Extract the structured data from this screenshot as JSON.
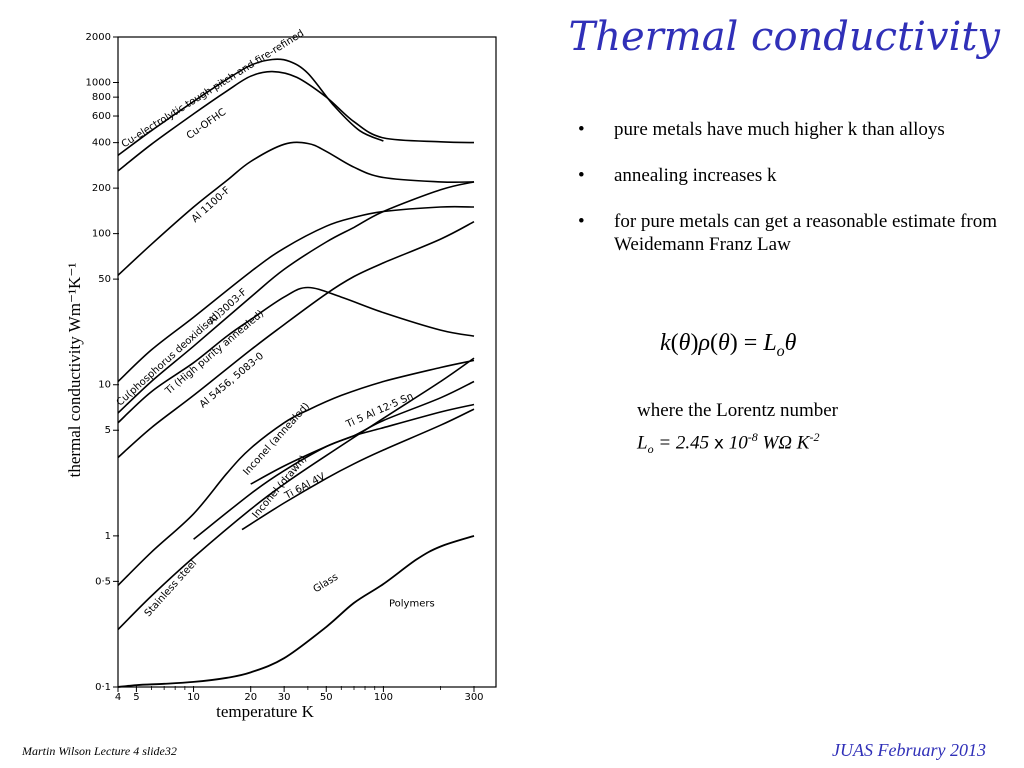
{
  "slide": {
    "title": "Thermal conductivity",
    "bullets": [
      "pure metals have much higher k than alloys",
      "annealing increases k",
      "for pure metals can get a reasonable estimate from Weidemann Franz Law"
    ],
    "bullet_symbol": "•",
    "formula": {
      "k": "k",
      "theta1": "θ",
      "rho": "ρ",
      "theta2": "θ",
      "L": "L",
      "o": "o",
      "theta3": "θ"
    },
    "lorentz": {
      "line1": "where the Lorentz number",
      "L": "L",
      "o": "o",
      "eq": " = 2.45 ",
      "times": "x",
      "ten": " 10",
      "exp": "-8",
      "units": " WΩ K",
      "units_exp": "-2"
    },
    "footer_left": "Martin Wilson Lecture 4 slide32",
    "footer_right": "JUAS February 2013",
    "accent_color": "#3030b8"
  },
  "chart_data": {
    "type": "line",
    "xlabel": "temperature K",
    "ylabel": "thermal conductivity Wm⁻¹K⁻¹",
    "x_scale": "log",
    "y_scale": "log",
    "xlim": [
      4,
      300
    ],
    "ylim": [
      0.1,
      2000
    ],
    "x_ticks": [
      4,
      5,
      10,
      20,
      30,
      50,
      100,
      300
    ],
    "x_tick_labels": [
      "4",
      "5",
      "10",
      "20",
      "30",
      "50",
      "100",
      "300"
    ],
    "x_minor_ticks": [
      6,
      7,
      8,
      9,
      40,
      60,
      70,
      80,
      90,
      200
    ],
    "y_ticks": [
      0.1,
      0.5,
      1,
      5,
      10,
      50,
      100,
      200,
      400,
      600,
      800,
      1000,
      2000
    ],
    "y_tick_labels": [
      "0·1",
      "0·5",
      "1",
      "5",
      "10",
      "50",
      "100",
      "200",
      "400",
      "600",
      "800",
      "1000",
      "2000"
    ],
    "series": [
      {
        "name": "Cu-electrolytic tough pitch and fire-refined",
        "x": [
          4,
          6,
          10,
          15,
          20,
          26,
          32,
          40,
          55,
          75,
          100
        ],
        "y": [
          330,
          480,
          750,
          1050,
          1300,
          1420,
          1380,
          1150,
          700,
          480,
          410
        ]
      },
      {
        "name": "Cu-OFHC",
        "x": [
          4,
          6,
          10,
          15,
          20,
          26,
          35,
          50,
          70,
          100,
          200,
          300
        ],
        "y": [
          260,
          390,
          620,
          880,
          1100,
          1180,
          1080,
          800,
          550,
          430,
          405,
          400
        ]
      },
      {
        "name": "Al 1100-F",
        "x": [
          4,
          6,
          10,
          15,
          20,
          30,
          40,
          50,
          70,
          100,
          200,
          300
        ],
        "y": [
          53,
          85,
          150,
          225,
          300,
          390,
          395,
          350,
          275,
          235,
          220,
          220
        ]
      },
      {
        "name": "Al 3003-F",
        "x": [
          4,
          6,
          10,
          20,
          30,
          50,
          70,
          100,
          200,
          300
        ],
        "y": [
          10.5,
          17,
          28,
          56,
          80,
          112,
          128,
          140,
          150,
          150
        ]
      },
      {
        "name": "Cu (phosphorus deoxidised)",
        "x": [
          4,
          6,
          10,
          20,
          30,
          50,
          70,
          100,
          200,
          300
        ],
        "y": [
          6.5,
          10.5,
          18,
          38,
          58,
          88,
          110,
          140,
          195,
          220
        ]
      },
      {
        "name": "Ti (High purity annealed)",
        "x": [
          4,
          6,
          10,
          15,
          20,
          30,
          40,
          60,
          100,
          200,
          300
        ],
        "y": [
          5.6,
          9,
          14,
          21,
          27,
          38,
          44,
          38,
          30,
          23,
          21
        ]
      },
      {
        "name": "Al 5456, 5083-0",
        "x": [
          4,
          6,
          10,
          20,
          30,
          50,
          70,
          100,
          200,
          300
        ],
        "y": [
          3.3,
          5.2,
          8.5,
          17,
          25,
          40,
          52,
          64,
          92,
          120
        ]
      },
      {
        "name": "Inconel (annealed)",
        "x": [
          4,
          6,
          10,
          15,
          20,
          30,
          40,
          60,
          100,
          200,
          300
        ],
        "y": [
          0.47,
          0.78,
          1.4,
          2.6,
          3.8,
          5.6,
          6.8,
          8.5,
          10.5,
          13,
          14.5
        ]
      },
      {
        "name": "Inconel (drawn)",
        "x": [
          10,
          20,
          30,
          50,
          70,
          100,
          200,
          300
        ],
        "y": [
          0.95,
          1.9,
          2.7,
          3.9,
          4.6,
          5.8,
          8.2,
          10.5
        ]
      },
      {
        "name": "Ti 5 Al 12.5 Sn",
        "x": [
          20,
          30,
          50,
          70,
          100,
          200,
          300
        ],
        "y": [
          2.2,
          2.9,
          3.9,
          4.6,
          5.2,
          6.6,
          7.4
        ]
      },
      {
        "name": "Ti 6 Al 4V",
        "x": [
          18,
          30,
          50,
          70,
          100,
          200,
          300
        ],
        "y": [
          1.1,
          1.65,
          2.4,
          3.0,
          3.7,
          5.4,
          6.9
        ]
      },
      {
        "name": "Stainless steel",
        "x": [
          4,
          6,
          10,
          20,
          30,
          50,
          100,
          200,
          300
        ],
        "y": [
          0.24,
          0.4,
          0.72,
          1.5,
          2.2,
          3.4,
          6.0,
          10.5,
          15
        ]
      },
      {
        "name": "Glass",
        "x": [
          4,
          5,
          7,
          10,
          15,
          20,
          30,
          50,
          70,
          100,
          150,
          200,
          300
        ],
        "y": [
          0.1,
          0.103,
          0.105,
          0.108,
          0.115,
          0.125,
          0.155,
          0.25,
          0.36,
          0.48,
          0.7,
          0.85,
          1.0
        ]
      }
    ],
    "labels": [
      {
        "text": "Cu-electrolytic tough pitch and fire-refined",
        "x": 4.3,
        "y": 370,
        "angle": -32
      },
      {
        "text": "Cu-OFHC",
        "x": 9.5,
        "y": 420,
        "angle": -35
      },
      {
        "text": "Al 1100-F",
        "x": 10.2,
        "y": 118,
        "angle": -42
      },
      {
        "text": "Al 3003-F",
        "x": 12.5,
        "y": 25,
        "angle": -42
      },
      {
        "text": "Cu(phosphorus deoxidised)",
        "x": 4.1,
        "y": 7.2,
        "angle": -42
      },
      {
        "text": "Ti (High purity annealed)",
        "x": 7.4,
        "y": 8.6,
        "angle": -40
      },
      {
        "text": "Al 5456, 5083-0",
        "x": 11.2,
        "y": 7.0,
        "angle": -40
      },
      {
        "text": "Inconel (annealed)",
        "x": 19.2,
        "y": 2.5,
        "angle": -48
      },
      {
        "text": "Inconel (drawn)",
        "x": 21.5,
        "y": 1.3,
        "angle": -50
      },
      {
        "text": "Ti 5 Al 12·5 Sn",
        "x": 65,
        "y": 5.2,
        "angle": -24
      },
      {
        "text": "Ti 6Al 4V",
        "x": 31,
        "y": 1.75,
        "angle": -28
      },
      {
        "text": "Stainless steel",
        "x": 5.8,
        "y": 0.29,
        "angle": -48
      },
      {
        "text": "Glass",
        "x": 44,
        "y": 0.42,
        "angle": -32
      },
      {
        "text": "Polymers",
        "x": 107,
        "y": 0.34,
        "angle": 0
      }
    ],
    "grid": false,
    "legend": "none"
  }
}
